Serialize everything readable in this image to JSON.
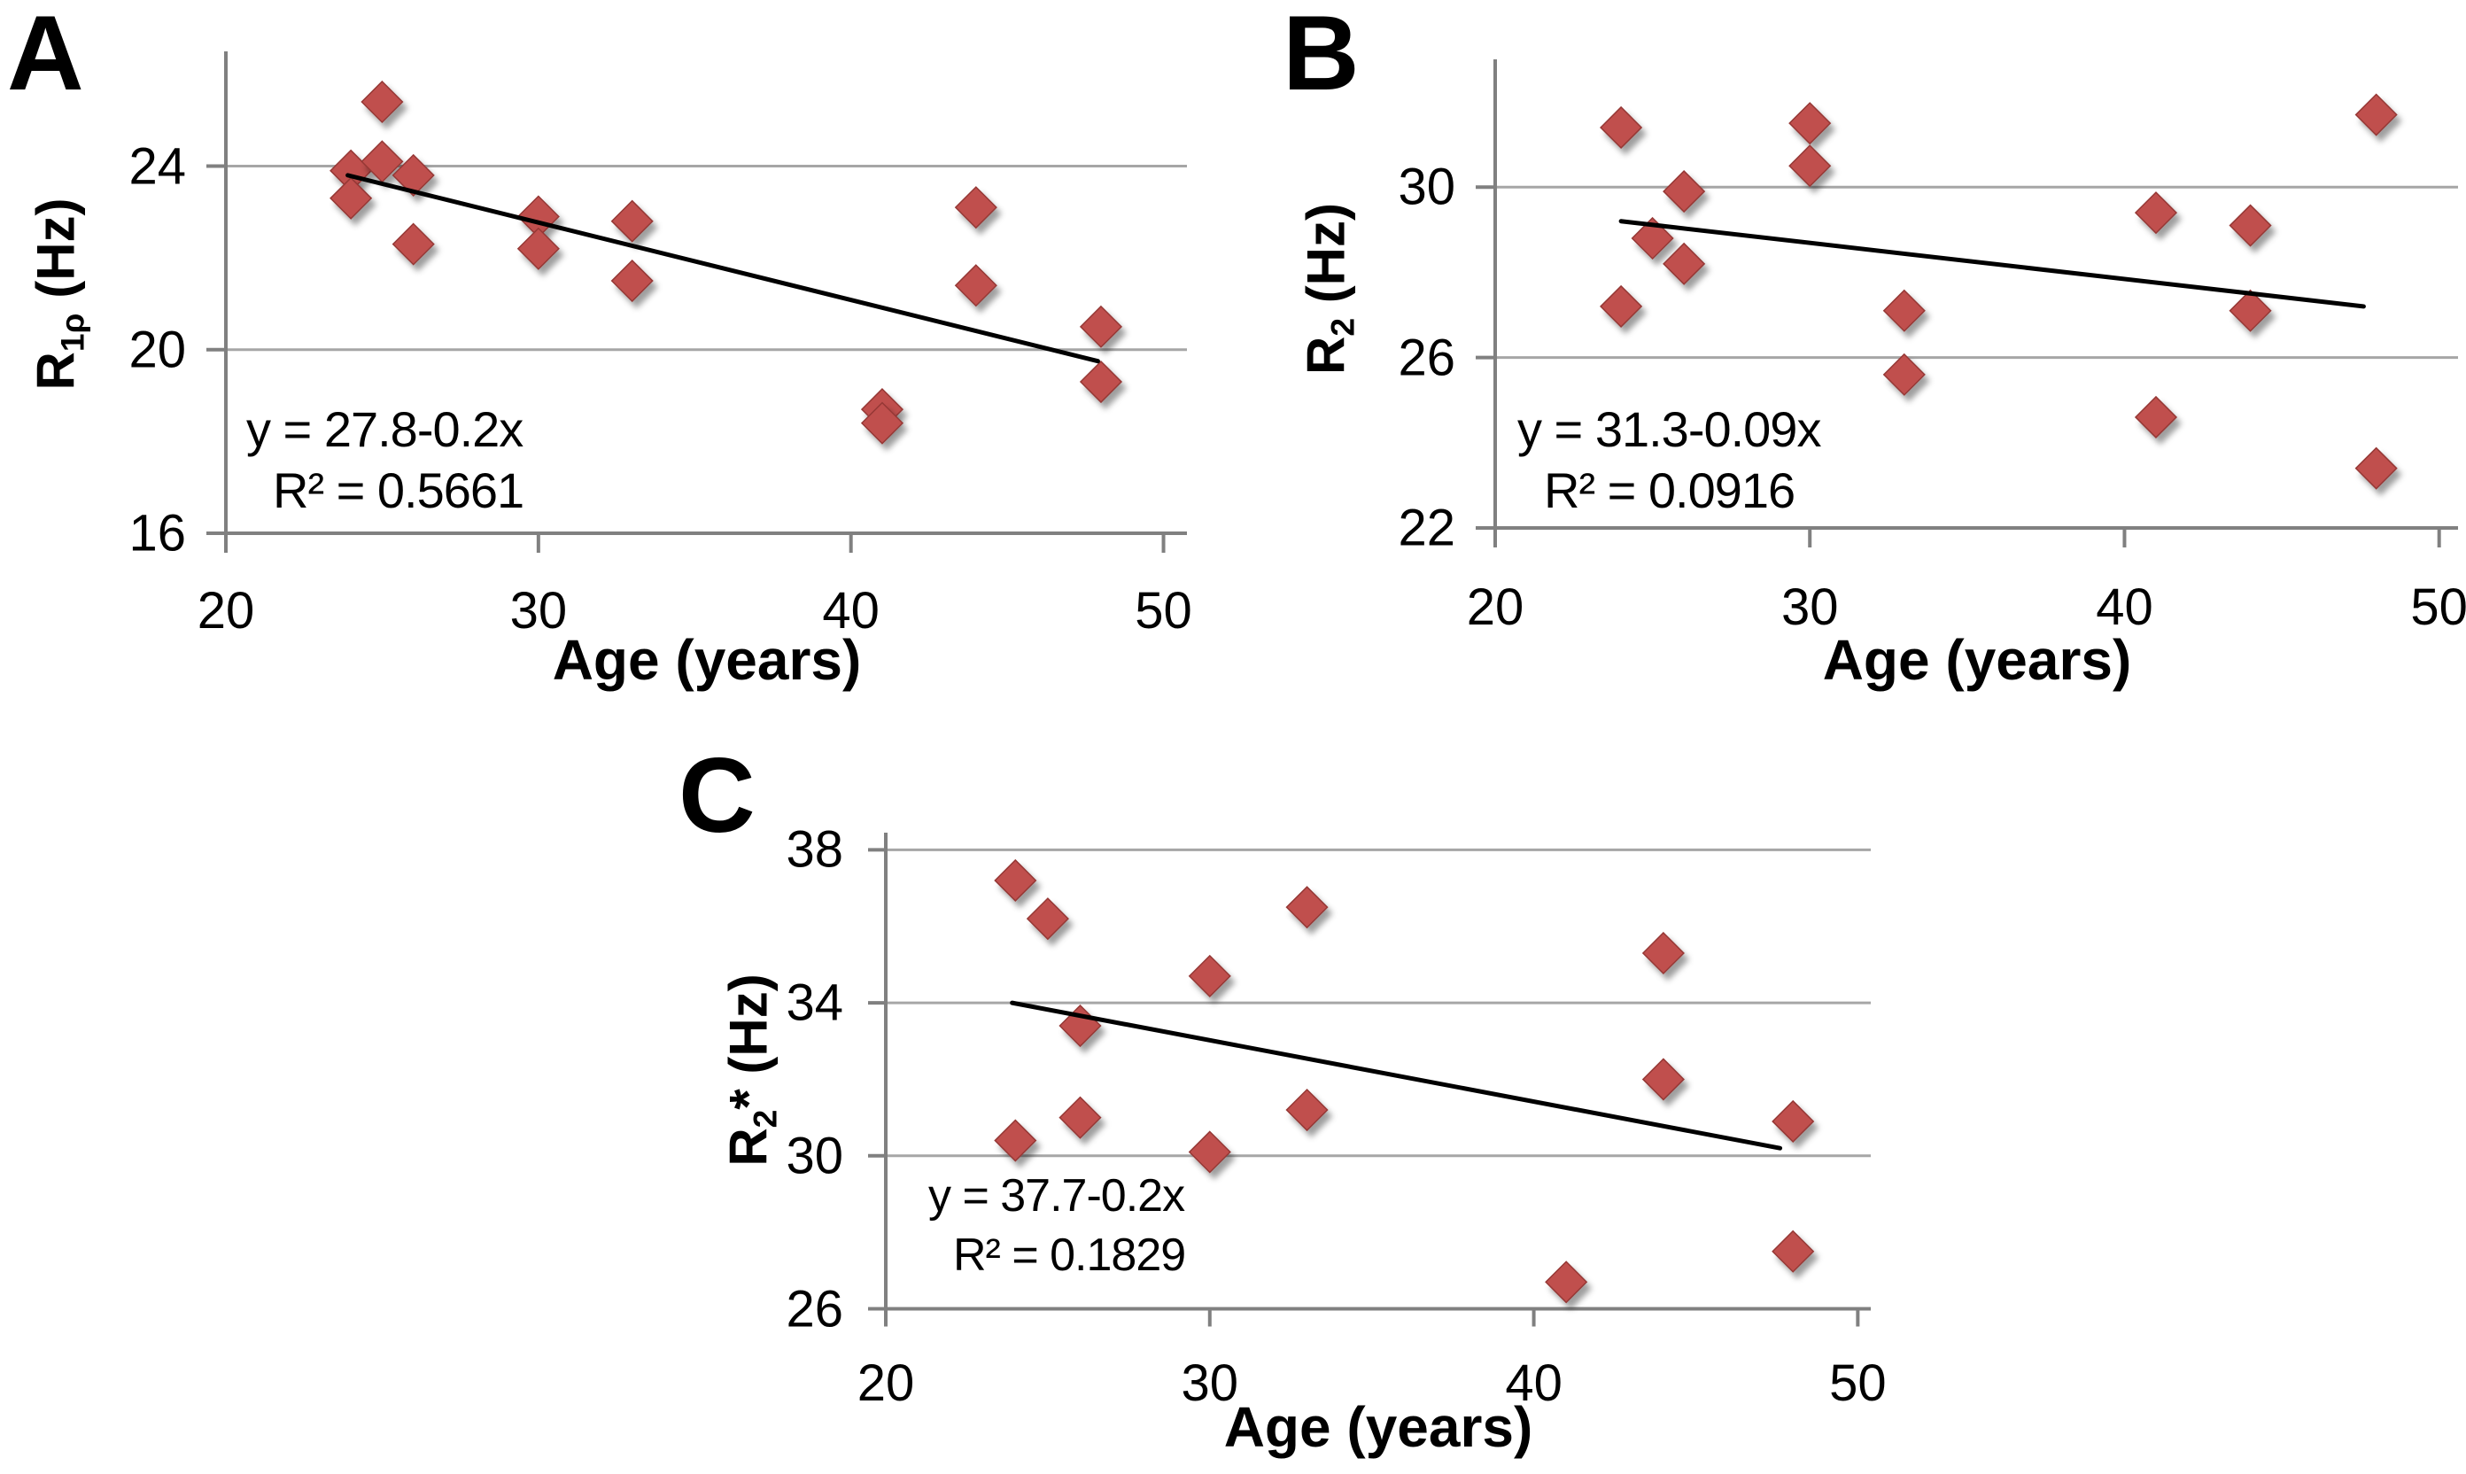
{
  "chart_data": [
    {
      "panel_label": "A",
      "type": "scatter",
      "marker": "diamond",
      "marker_color": "#c0504d",
      "marker_edge_color": "#953735",
      "trend_color": "#000000",
      "gridline_color": "#a6a6a6",
      "axis_color": "#808080",
      "xlabel": "Age (years)",
      "ylabel": {
        "prefix": "R",
        "sub": "1ρ",
        "star": "",
        "suffix": " (Hz)"
      },
      "equation": "y = 27.8-0.2x",
      "r2_label": "R² = 0.5661",
      "x_ticks": [
        20,
        30,
        40,
        50
      ],
      "y_ticks": [
        16,
        20,
        24
      ],
      "gridlines": [
        20,
        24
      ],
      "xlim": [
        20,
        50.75
      ],
      "ylim": [
        16,
        26.5
      ],
      "grid": true,
      "legend": "none",
      "points": [
        [
          24,
          23.9
        ],
        [
          24,
          23.3
        ],
        [
          25,
          25.4
        ],
        [
          25,
          24.1
        ],
        [
          26,
          23.8
        ],
        [
          26,
          22.3
        ],
        [
          30,
          22.9
        ],
        [
          30,
          22.2
        ],
        [
          33,
          22.8
        ],
        [
          33,
          21.5
        ],
        [
          41,
          18.7
        ],
        [
          41,
          18.4
        ],
        [
          44,
          23.1
        ],
        [
          44,
          21.4
        ],
        [
          48,
          20.5
        ],
        [
          48,
          19.3
        ]
      ],
      "trend": [
        [
          23.9,
          23.8
        ],
        [
          47.9,
          19.75
        ]
      ]
    },
    {
      "panel_label": "B",
      "type": "scatter",
      "marker": "diamond",
      "marker_color": "#c0504d",
      "marker_edge_color": "#953735",
      "trend_color": "#000000",
      "gridline_color": "#a6a6a6",
      "axis_color": "#808080",
      "xlabel": "Age (years)",
      "ylabel": {
        "prefix": "R",
        "sub": "2",
        "star": "",
        "suffix": " (Hz)"
      },
      "equation": "y = 31.3-0.09x",
      "r2_label": "R² = 0.0916",
      "x_ticks": [
        20,
        30,
        40,
        50
      ],
      "y_ticks": [
        22,
        26,
        30
      ],
      "gridlines": [
        26,
        30
      ],
      "xlim": [
        20,
        50.6
      ],
      "ylim": [
        22,
        33
      ],
      "grid": true,
      "legend": "none",
      "points": [
        [
          24,
          31.4
        ],
        [
          24,
          27.2
        ],
        [
          25,
          28.8
        ],
        [
          26,
          29.9
        ],
        [
          26,
          28.2
        ],
        [
          30,
          31.5
        ],
        [
          30,
          30.5
        ],
        [
          33,
          27.1
        ],
        [
          33,
          25.6
        ],
        [
          41,
          29.4
        ],
        [
          41,
          24.6
        ],
        [
          44,
          29.1
        ],
        [
          44,
          27.1
        ],
        [
          48,
          31.7
        ],
        [
          48,
          23.4
        ]
      ],
      "trend": [
        [
          24.0,
          29.2
        ],
        [
          47.6,
          27.2
        ]
      ]
    },
    {
      "panel_label": "C",
      "type": "scatter",
      "marker": "diamond",
      "marker_color": "#c0504d",
      "marker_edge_color": "#953735",
      "trend_color": "#000000",
      "gridline_color": "#a6a6a6",
      "axis_color": "#808080",
      "xlabel": "Age (years)",
      "ylabel": {
        "prefix": "R",
        "sub": "2",
        "star": "*",
        "suffix": " (Hz)"
      },
      "equation": "y = 37.7-0.2x",
      "r2_label": "R² = 0.1829",
      "x_ticks": [
        20,
        30,
        40,
        50
      ],
      "y_ticks": [
        26,
        30,
        34,
        38
      ],
      "gridlines": [
        30,
        34,
        38
      ],
      "xlim": [
        20,
        50.4
      ],
      "ylim": [
        26,
        38.45
      ],
      "grid": true,
      "legend": "none",
      "points": [
        [
          24,
          37.2
        ],
        [
          24,
          30.4
        ],
        [
          25,
          36.2
        ],
        [
          26,
          33.4
        ],
        [
          26,
          31.0
        ],
        [
          30,
          34.7
        ],
        [
          30,
          30.1
        ],
        [
          33,
          36.5
        ],
        [
          33,
          31.2
        ],
        [
          41,
          26.7
        ],
        [
          44,
          35.3
        ],
        [
          44,
          32.0
        ],
        [
          48,
          30.9
        ],
        [
          48,
          27.5
        ]
      ],
      "trend": [
        [
          23.9,
          34.0
        ],
        [
          47.6,
          30.2
        ]
      ]
    }
  ]
}
